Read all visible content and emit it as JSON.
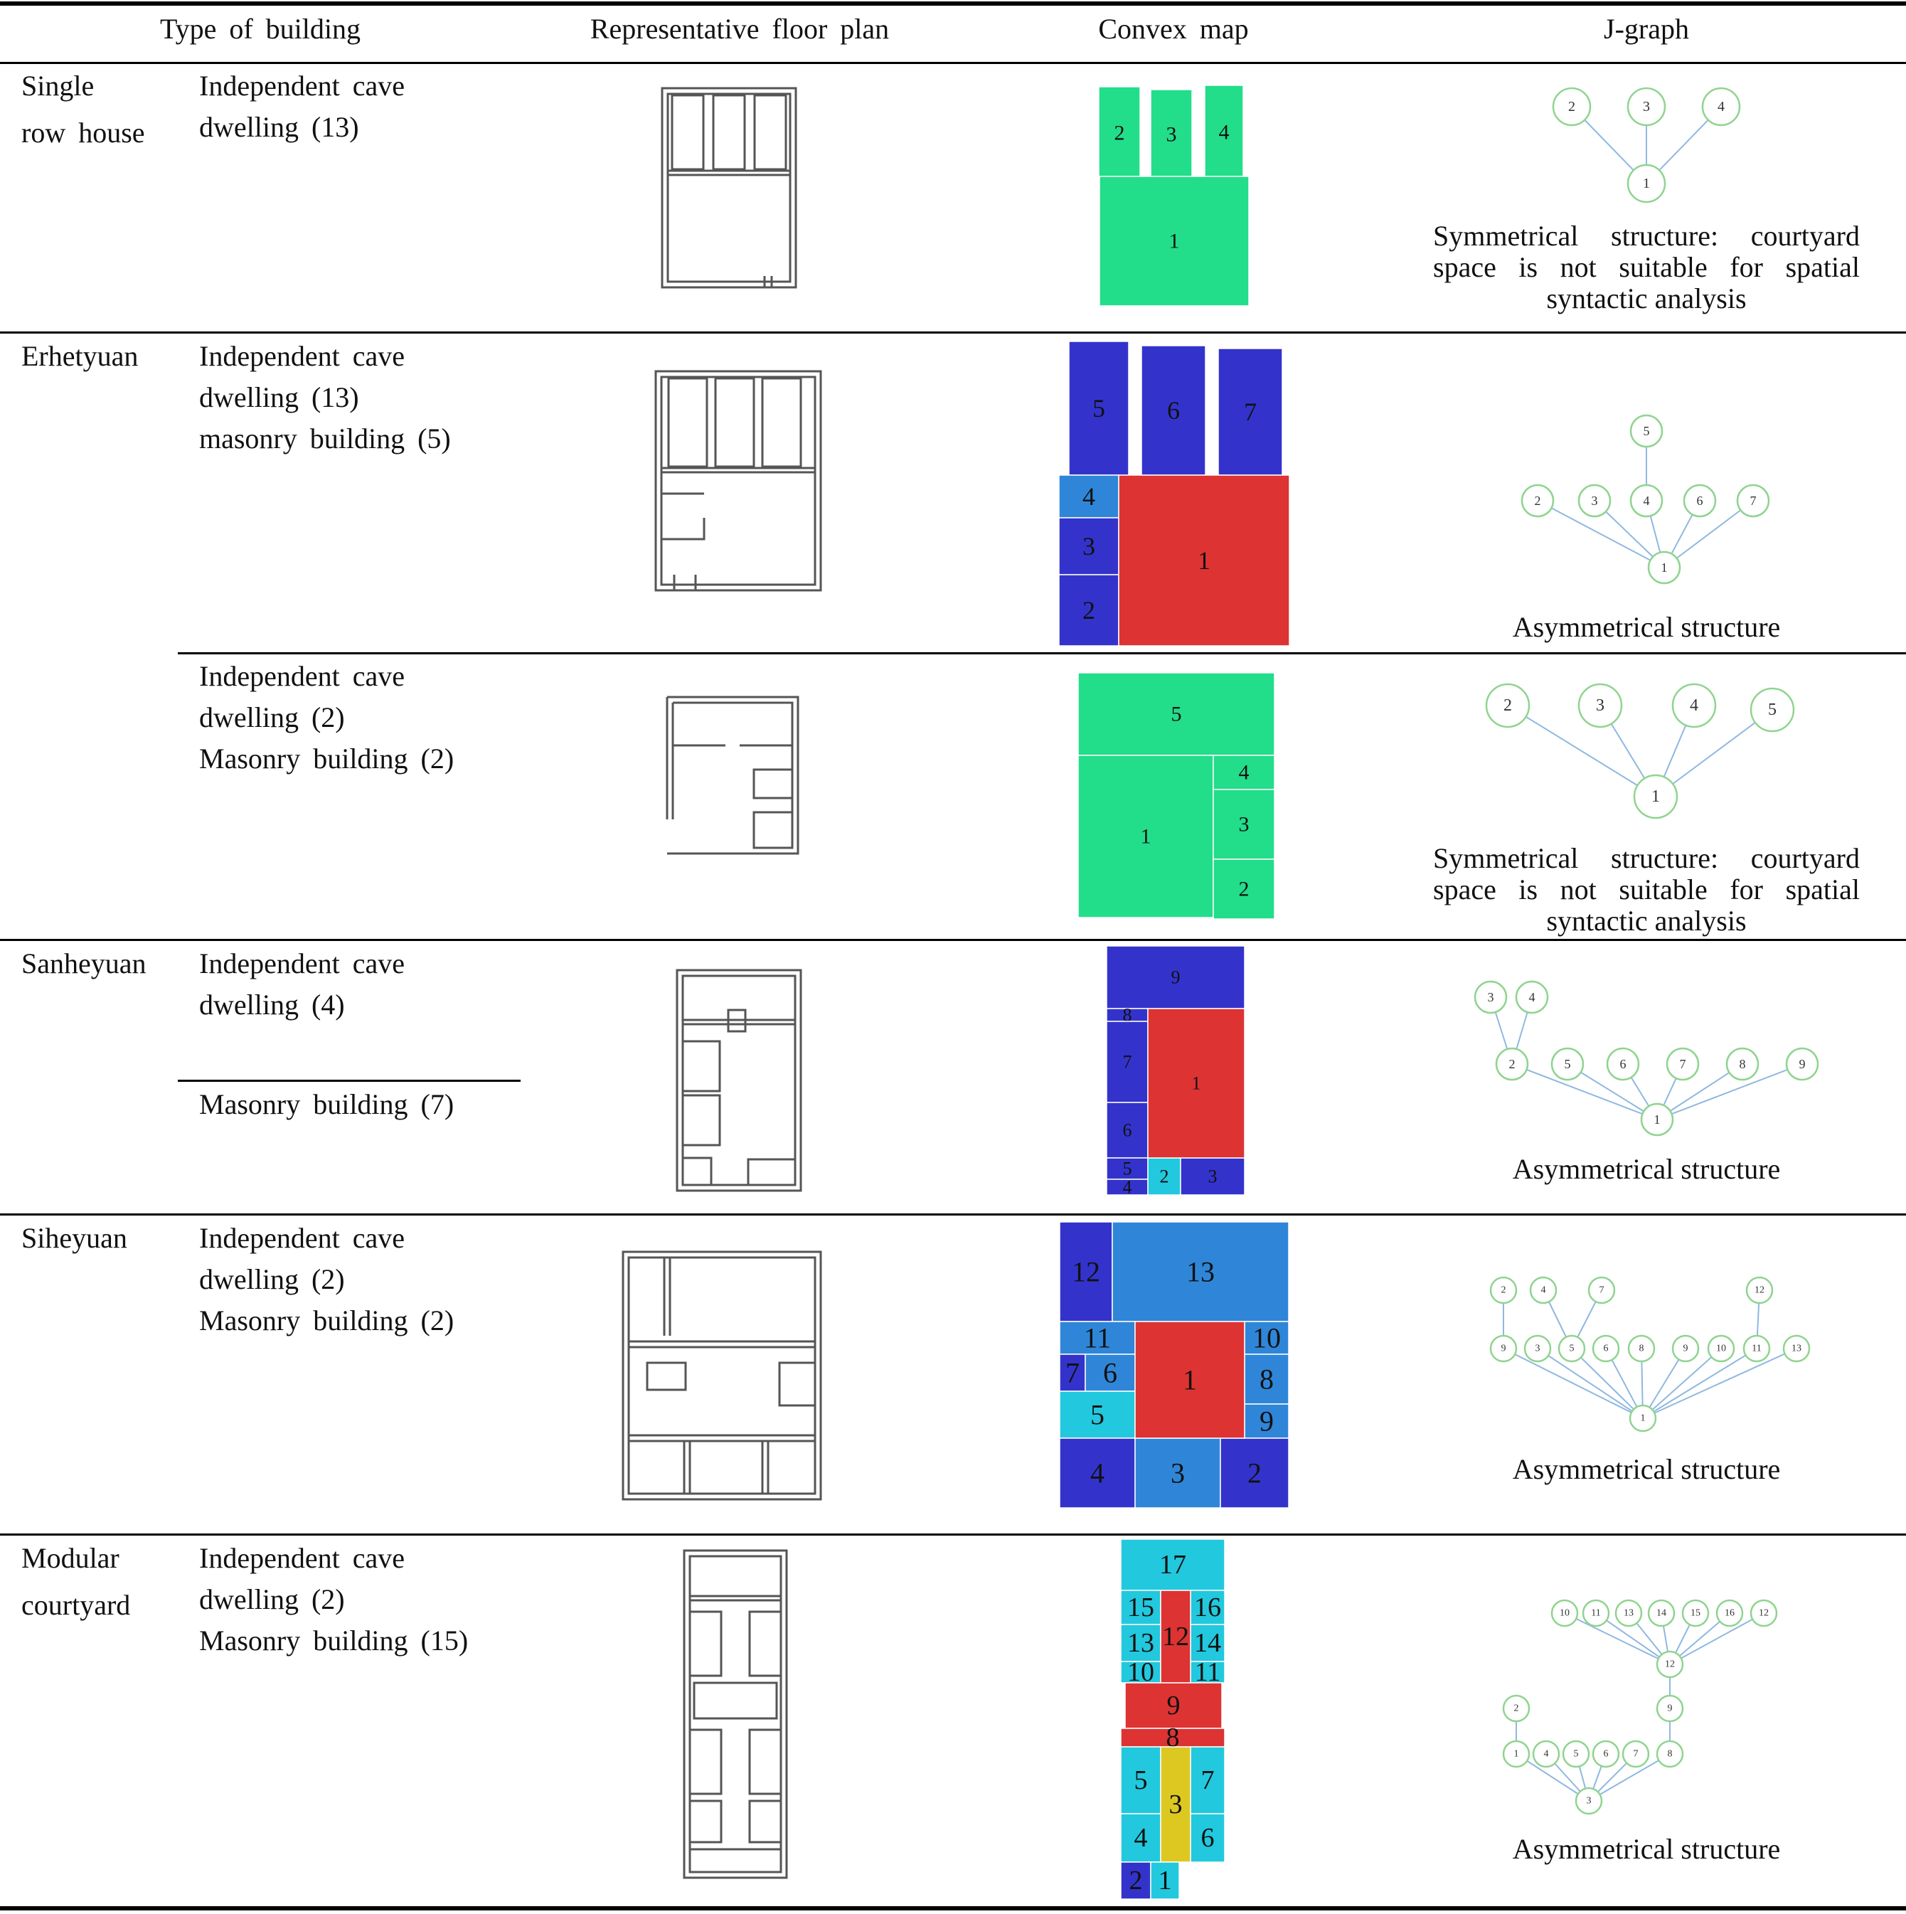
{
  "headers": {
    "type": "Type of building",
    "plan": "Representative floor plan",
    "convex": "Convex map",
    "jgraph": "J-graph"
  },
  "rows": [
    {
      "category": "Single row house",
      "cat_lines": [
        "Single",
        "row house"
      ],
      "entries": [
        {
          "lines": [
            "Independent cave",
            "dwelling (13)"
          ],
          "note_lines": [
            "Symmetrical structure: courtyard",
            "space is not suitable for spatial",
            "syntactic analysis"
          ]
        }
      ]
    },
    {
      "category": "Erhetyuan",
      "cat_lines": [
        "Erhetyuan"
      ],
      "entries": [
        {
          "lines": [
            "Independent cave",
            "dwelling (13)",
            "masonry building (5)"
          ],
          "note_lines": [
            "Asymmetrical structure"
          ]
        },
        {
          "lines": [
            "Independent cave",
            "dwelling (2)",
            "Masonry building (2)"
          ],
          "note_lines": [
            "Symmetrical structure: courtyard",
            "space is not suitable for spatial",
            "syntactic analysis"
          ]
        }
      ]
    },
    {
      "category": "Sanheyuan",
      "cat_lines": [
        "Sanheyuan"
      ],
      "entries": [
        {
          "lines": [
            "Independent cave",
            "dwelling (4)"
          ]
        },
        {
          "lines": [
            "Masonry building (7)"
          ]
        }
      ],
      "note_lines": [
        "Asymmetrical structure"
      ]
    },
    {
      "category": "Siheyuan",
      "cat_lines": [
        "Siheyuan"
      ],
      "entries": [
        {
          "lines": [
            "Independent cave",
            "dwelling (2)",
            "Masonry building (2)"
          ],
          "note_lines": [
            "Asymmetrical structure"
          ]
        }
      ]
    },
    {
      "category": "Modular courtyard",
      "cat_lines": [
        "Modular",
        "courtyard"
      ],
      "entries": [
        {
          "lines": [
            "Independent cave",
            "dwelling (2)",
            "Masonry building (15)"
          ],
          "note_lines": [
            "Asymmetrical structure"
          ]
        }
      ]
    }
  ],
  "convex_maps": [
    {
      "name": "single-row-house",
      "spaces": [
        {
          "label": "2",
          "color": "#22dd8a"
        },
        {
          "label": "3",
          "color": "#22dd8a"
        },
        {
          "label": "4",
          "color": "#22dd8a"
        },
        {
          "label": "1",
          "color": "#22dd8a"
        }
      ]
    },
    {
      "name": "erhetyuan-1",
      "spaces": [
        {
          "label": "5",
          "color": "#3333cc"
        },
        {
          "label": "6",
          "color": "#3333cc"
        },
        {
          "label": "7",
          "color": "#3333cc"
        },
        {
          "label": "4",
          "color": "#2f86d8"
        },
        {
          "label": "3",
          "color": "#3333cc"
        },
        {
          "label": "2",
          "color": "#3333cc"
        },
        {
          "label": "1",
          "color": "#dd3333"
        }
      ]
    },
    {
      "name": "erhetyuan-2",
      "spaces": [
        {
          "label": "5",
          "color": "#22dd8a"
        },
        {
          "label": "1",
          "color": "#22dd8a"
        },
        {
          "label": "4",
          "color": "#22dd8a"
        },
        {
          "label": "3",
          "color": "#22dd8a"
        },
        {
          "label": "2",
          "color": "#22dd8a"
        }
      ]
    },
    {
      "name": "sanheyuan",
      "spaces": [
        {
          "label": "9",
          "color": "#3333cc"
        },
        {
          "label": "8",
          "color": "#3333cc"
        },
        {
          "label": "7",
          "color": "#3333cc"
        },
        {
          "label": "6",
          "color": "#3333cc"
        },
        {
          "label": "5",
          "color": "#3333cc"
        },
        {
          "label": "4",
          "color": "#3333cc"
        },
        {
          "label": "2",
          "color": "#22c8dd"
        },
        {
          "label": "3",
          "color": "#3333cc"
        },
        {
          "label": "1",
          "color": "#dd3333"
        }
      ]
    },
    {
      "name": "siheyuan",
      "spaces": [
        {
          "label": "12",
          "color": "#3333cc"
        },
        {
          "label": "13",
          "color": "#2f86d8"
        },
        {
          "label": "11",
          "color": "#2f86d8"
        },
        {
          "label": "10",
          "color": "#2f86d8"
        },
        {
          "label": "7",
          "color": "#3333cc"
        },
        {
          "label": "6",
          "color": "#2f86d8"
        },
        {
          "label": "5",
          "color": "#22c8dd"
        },
        {
          "label": "8",
          "color": "#2f86d8"
        },
        {
          "label": "9",
          "color": "#2f86d8"
        },
        {
          "label": "4",
          "color": "#3333cc"
        },
        {
          "label": "3",
          "color": "#2f86d8"
        },
        {
          "label": "2",
          "color": "#3333cc"
        },
        {
          "label": "1",
          "color": "#dd3333"
        }
      ]
    },
    {
      "name": "modular-courtyard",
      "spaces": [
        {
          "label": "17",
          "color": "#22c8dd"
        },
        {
          "label": "15",
          "color": "#22c8dd"
        },
        {
          "label": "16",
          "color": "#22c8dd"
        },
        {
          "label": "13",
          "color": "#22c8dd"
        },
        {
          "label": "14",
          "color": "#22c8dd"
        },
        {
          "label": "10",
          "color": "#22c8dd"
        },
        {
          "label": "11",
          "color": "#22c8dd"
        },
        {
          "label": "12",
          "color": "#dd3333"
        },
        {
          "label": "9",
          "color": "#dd3333"
        },
        {
          "label": "8",
          "color": "#dd3333"
        },
        {
          "label": "5",
          "color": "#22c8dd"
        },
        {
          "label": "7",
          "color": "#22c8dd"
        },
        {
          "label": "4",
          "color": "#22c8dd"
        },
        {
          "label": "6",
          "color": "#22c8dd"
        },
        {
          "label": "3",
          "color": "#ddc822"
        },
        {
          "label": "2",
          "color": "#3333cc"
        },
        {
          "label": "1",
          "color": "#22c8dd"
        }
      ]
    }
  ],
  "jgraphs": [
    {
      "name": "single-row-house",
      "nodes": [
        "1",
        "2",
        "3",
        "4"
      ],
      "edges": [
        [
          "1",
          "2"
        ],
        [
          "1",
          "3"
        ],
        [
          "1",
          "4"
        ]
      ]
    },
    {
      "name": "erhetyuan-1",
      "nodes": [
        "1",
        "2",
        "3",
        "4",
        "5",
        "6",
        "7"
      ],
      "edges": [
        [
          "1",
          "2"
        ],
        [
          "1",
          "3"
        ],
        [
          "1",
          "4"
        ],
        [
          "1",
          "6"
        ],
        [
          "1",
          "7"
        ],
        [
          "4",
          "5"
        ]
      ]
    },
    {
      "name": "erhetyuan-2",
      "nodes": [
        "1",
        "2",
        "3",
        "4",
        "5"
      ],
      "edges": [
        [
          "1",
          "2"
        ],
        [
          "1",
          "3"
        ],
        [
          "1",
          "4"
        ],
        [
          "1",
          "5"
        ]
      ]
    },
    {
      "name": "sanheyuan",
      "nodes": [
        "1",
        "2",
        "3",
        "4",
        "5",
        "6",
        "7",
        "8",
        "9"
      ],
      "edges": [
        [
          "1",
          "2"
        ],
        [
          "1",
          "5"
        ],
        [
          "1",
          "6"
        ],
        [
          "1",
          "7"
        ],
        [
          "1",
          "8"
        ],
        [
          "1",
          "9"
        ],
        [
          "2",
          "3"
        ],
        [
          "2",
          "4"
        ]
      ]
    },
    {
      "name": "siheyuan",
      "nodes": [
        "1",
        "2",
        "4",
        "7",
        "12",
        "9",
        "3",
        "5",
        "6",
        "8",
        "9b",
        "10",
        "11",
        "13"
      ],
      "labels": {
        "9b": "9"
      },
      "edges": [
        [
          "1",
          "9"
        ],
        [
          "1",
          "3"
        ],
        [
          "1",
          "5"
        ],
        [
          "1",
          "6"
        ],
        [
          "1",
          "8"
        ],
        [
          "1",
          "9b"
        ],
        [
          "1",
          "10"
        ],
        [
          "1",
          "11"
        ],
        [
          "1",
          "13"
        ],
        [
          "9",
          "2"
        ],
        [
          "5",
          "4"
        ],
        [
          "5",
          "7"
        ],
        [
          "11",
          "12"
        ]
      ]
    },
    {
      "name": "modular-courtyard",
      "nodes": [
        "3",
        "1",
        "4",
        "5",
        "6",
        "7",
        "8",
        "2",
        "9",
        "12",
        "10",
        "11",
        "13",
        "14",
        "15",
        "16",
        "12b"
      ],
      "labels": {
        "12b": "12"
      },
      "edges": [
        [
          "3",
          "1"
        ],
        [
          "3",
          "4"
        ],
        [
          "3",
          "5"
        ],
        [
          "3",
          "6"
        ],
        [
          "3",
          "7"
        ],
        [
          "3",
          "8"
        ],
        [
          "1",
          "2"
        ],
        [
          "8",
          "9"
        ],
        [
          "9",
          "12"
        ],
        [
          "12",
          "10"
        ],
        [
          "12",
          "11"
        ],
        [
          "12",
          "13"
        ],
        [
          "12",
          "14"
        ],
        [
          "12",
          "15"
        ],
        [
          "12",
          "16"
        ],
        [
          "12",
          "12b"
        ]
      ]
    }
  ]
}
